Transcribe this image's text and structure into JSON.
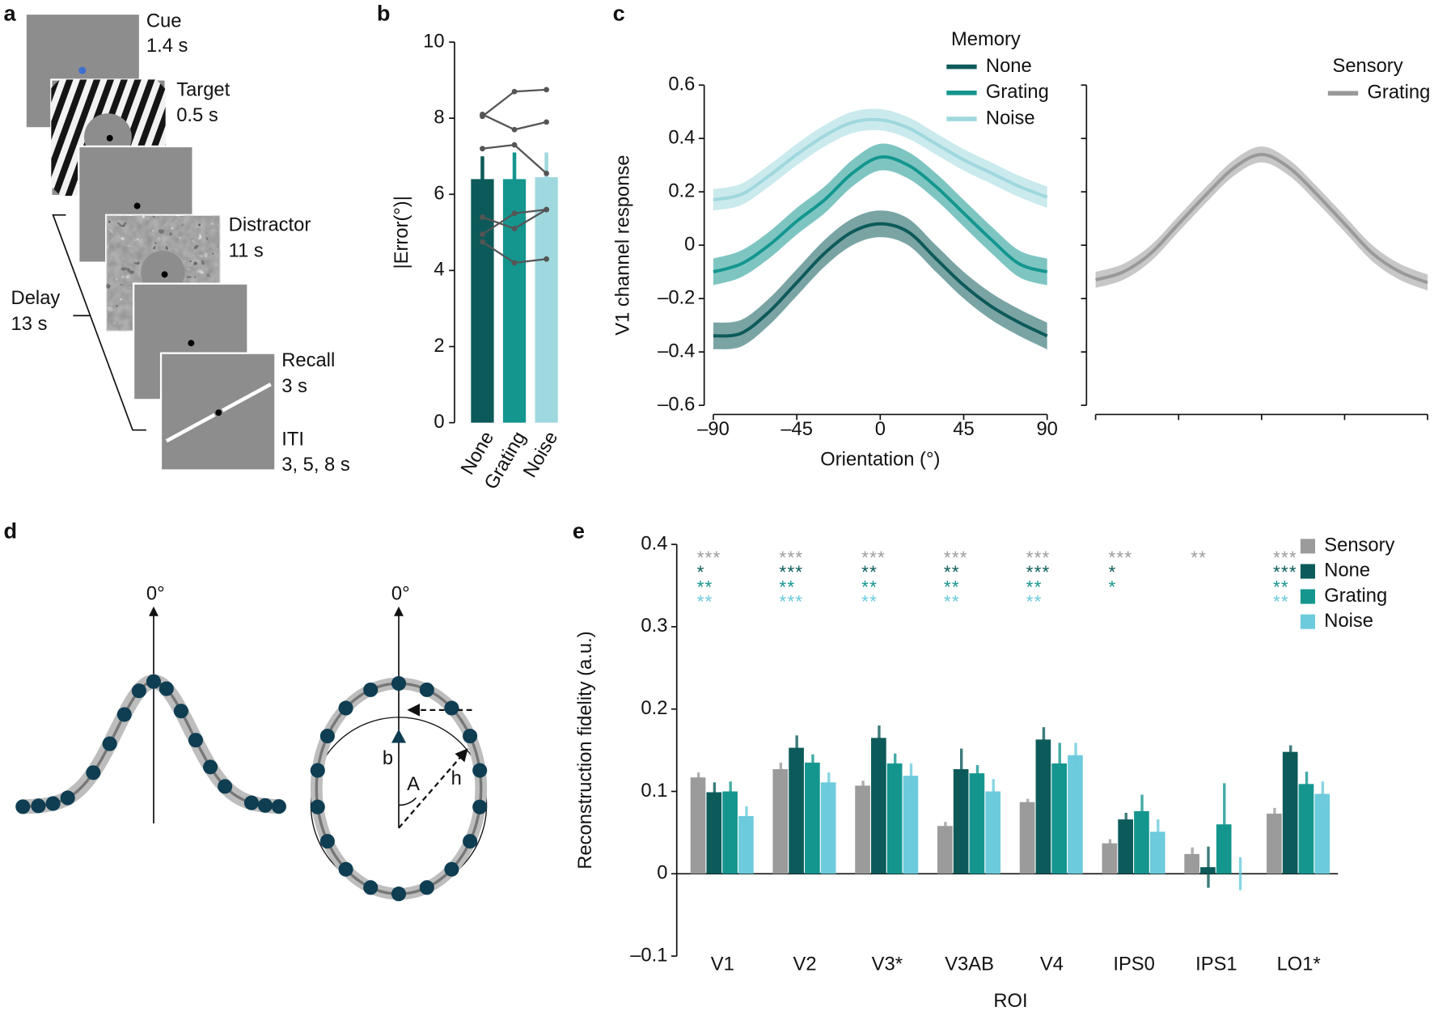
{
  "panel_labels": [
    "a",
    "b",
    "c",
    "d",
    "e"
  ],
  "panel_a": {
    "cue": "Cue",
    "cue_time": "1.4 s",
    "target": "Target",
    "target_time": "0.5 s",
    "distractor": "Distractor",
    "distractor_time": "11 s",
    "recall": "Recall",
    "recall_time": "3 s",
    "iti": "ITI",
    "iti_time": "3, 5, 8 s",
    "delay": "Delay",
    "delay_time": "13 s"
  },
  "panel_d": {
    "zero_left": "0°",
    "zero_right": "0°",
    "b": "b",
    "A": "A",
    "h": "h"
  },
  "chart_data": [
    {
      "type": "bar",
      "ylabel": "|Error(°)|",
      "categories": [
        "None",
        "Grating",
        "Noise"
      ],
      "values": [
        6.4,
        6.4,
        6.45
      ],
      "errors": [
        0.6,
        0.7,
        0.65
      ],
      "colors": [
        "#0d5a5a",
        "#14968f",
        "#9fd8de"
      ],
      "subjects": [
        [
          8.05,
          8.7,
          8.75
        ],
        [
          8.1,
          7.7,
          7.9
        ],
        [
          7.2,
          7.3,
          6.55
        ],
        [
          5.4,
          5.1,
          5.6
        ],
        [
          4.95,
          5.5,
          5.6
        ],
        [
          4.75,
          4.2,
          4.3
        ]
      ],
      "subject_color": "#555555",
      "ylim": [
        0,
        10
      ],
      "yticks": [
        0,
        2,
        4,
        6,
        8,
        10
      ]
    },
    {
      "type": "line",
      "legend_title": "Memory",
      "xlabel": "Orientation (°)",
      "ylabel": "V1 channel response",
      "x": [
        -90,
        -75,
        -60,
        -45,
        -30,
        -15,
        0,
        15,
        30,
        45,
        60,
        75,
        90
      ],
      "series": [
        {
          "name": "None",
          "color": "#0d5a5a",
          "error": 0.05,
          "values": [
            -0.34,
            -0.33,
            -0.25,
            -0.14,
            -0.03,
            0.05,
            0.08,
            0.05,
            -0.05,
            -0.15,
            -0.23,
            -0.29,
            -0.34
          ]
        },
        {
          "name": "Grating",
          "color": "#14968f",
          "error": 0.05,
          "values": [
            -0.1,
            -0.07,
            0.0,
            0.09,
            0.17,
            0.27,
            0.33,
            0.3,
            0.22,
            0.12,
            0.02,
            -0.07,
            -0.1
          ]
        },
        {
          "name": "Noise",
          "color": "#9fd8de",
          "error": 0.04,
          "values": [
            0.17,
            0.19,
            0.26,
            0.34,
            0.41,
            0.46,
            0.47,
            0.44,
            0.38,
            0.32,
            0.27,
            0.22,
            0.18
          ]
        }
      ],
      "xlim": [
        -90,
        90
      ],
      "xticks": [
        {
          "value": -90,
          "label": "–90"
        },
        {
          "value": -45,
          "label": "–45"
        },
        0,
        45,
        90
      ],
      "ylim": [
        -0.6,
        0.6
      ],
      "yticks": [
        {
          "value": -0.6,
          "label": "–0.6"
        },
        {
          "value": -0.4,
          "label": "–0.4"
        },
        {
          "value": -0.2,
          "label": "–0.2"
        },
        0,
        0.2,
        0.4,
        0.6
      ]
    },
    {
      "type": "line",
      "legend_title": "Sensory",
      "tick_labels": false,
      "x": [
        -90,
        -75,
        -60,
        -45,
        -30,
        -15,
        0,
        15,
        30,
        45,
        60,
        75,
        90
      ],
      "series": [
        {
          "name": "Grating",
          "color": "#999999",
          "error": 0.03,
          "values": [
            -0.13,
            -0.1,
            -0.03,
            0.08,
            0.19,
            0.29,
            0.34,
            0.29,
            0.19,
            0.08,
            -0.03,
            -0.1,
            -0.14
          ]
        }
      ],
      "xlim": [
        -90,
        90
      ],
      "xticks": [
        -90,
        -45,
        0,
        45,
        90
      ],
      "ylim": [
        -0.6,
        0.6
      ],
      "yticks": [
        -0.6,
        -0.4,
        -0.2,
        0,
        0.2,
        0.4,
        0.6
      ]
    },
    {
      "type": "bar",
      "xlabel": "ROI",
      "ylabel": "Reconstruction fidelity (a.u.)",
      "categories": [
        "V1",
        "V2",
        "V3*",
        "V3AB",
        "V4",
        "IPS0",
        "IPS1",
        "LO1*"
      ],
      "series": [
        {
          "name": "Sensory",
          "color": "#9b9b9b",
          "values": [
            0.117,
            0.127,
            0.107,
            0.058,
            0.087,
            0.037,
            0.024,
            0.073
          ],
          "errors": [
            0.006,
            0.008,
            0.006,
            0.005,
            0.004,
            0.005,
            0.008,
            0.007
          ],
          "stars": [
            "***",
            "***",
            "***",
            "***",
            "***",
            "***",
            "**",
            "***"
          ]
        },
        {
          "name": "None",
          "color": "#0d5a5a",
          "values": [
            0.099,
            0.153,
            0.165,
            0.127,
            0.163,
            0.066,
            0.008,
            0.148
          ],
          "errors": [
            0.012,
            0.015,
            0.015,
            0.025,
            0.015,
            0.008,
            0.025,
            0.008
          ],
          "stars": [
            "*",
            "***",
            "**",
            "**",
            "***",
            "*",
            null,
            "***"
          ]
        },
        {
          "name": "Grating",
          "color": "#14968f",
          "values": [
            0.1,
            0.135,
            0.134,
            0.122,
            0.134,
            0.076,
            0.06,
            0.109
          ],
          "errors": [
            0.012,
            0.01,
            0.012,
            0.01,
            0.025,
            0.02,
            0.05,
            0.015
          ],
          "stars": [
            "**",
            "**",
            "**",
            "**",
            "**",
            "*",
            null,
            "**"
          ]
        },
        {
          "name": "Noise",
          "color": "#6ccbdc",
          "values": [
            0.07,
            0.111,
            0.119,
            0.1,
            0.144,
            0.051,
            0,
            0.097
          ],
          "errors": [
            0.012,
            0.012,
            0.015,
            0.015,
            0.015,
            0.015,
            0.02,
            0.015
          ],
          "stars": [
            "**",
            "***",
            "**",
            "**",
            "**",
            null,
            null,
            "**"
          ]
        }
      ],
      "ylim": [
        -0.1,
        0.4
      ],
      "yticks": [
        {
          "value": -0.1,
          "label": "–0.1"
        },
        0,
        0.1,
        0.2,
        0.3,
        0.4
      ]
    }
  ]
}
